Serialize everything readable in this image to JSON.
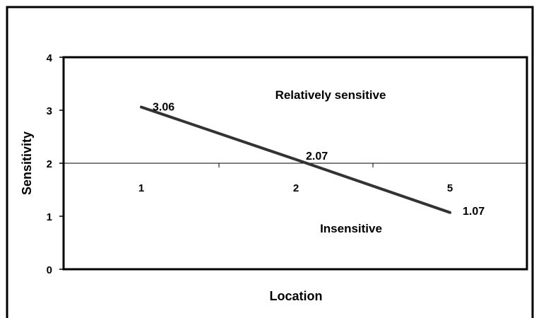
{
  "chart_data": {
    "type": "line",
    "categories": [
      "1",
      "2",
      "5"
    ],
    "series": [
      {
        "values": [
          3.06,
          2.07,
          1.07
        ],
        "labels": [
          "3.06",
          "2.07",
          "1.07"
        ]
      }
    ],
    "xlabel": "Location",
    "ylabel": "Sensitivity",
    "ylim": [
      0,
      4
    ],
    "yticks": [
      "0",
      "1",
      "2",
      "3",
      "4"
    ],
    "reference_line": {
      "y": 2
    },
    "region_labels": {
      "upper": "Relatively sensitive",
      "lower": "Insensitive"
    },
    "grid": false,
    "legend": "none",
    "colors": {
      "line": "#333333",
      "frame": "#000000"
    }
  }
}
